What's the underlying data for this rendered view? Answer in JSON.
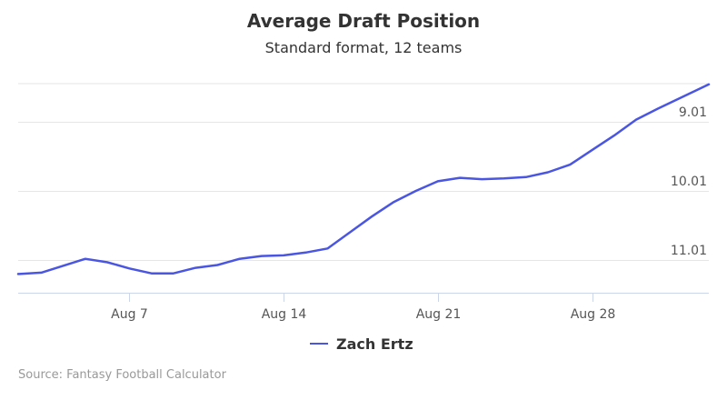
{
  "chart_data": {
    "type": "line",
    "title": "Average Draft Position",
    "subtitle": "Standard format, 12 teams",
    "xlabel": "",
    "ylabel": "",
    "x_ticks": [
      {
        "label": "Aug 7",
        "day": 7
      },
      {
        "label": "Aug 14",
        "day": 14
      },
      {
        "label": "Aug 21",
        "day": 21
      },
      {
        "label": "Aug 28",
        "day": 28
      }
    ],
    "y_ticks": [
      {
        "label": "9.01",
        "value": 9.01
      },
      {
        "label": "10.01",
        "value": 10.01
      },
      {
        "label": "11.01",
        "value": 11.01
      }
    ],
    "ylim": [
      8.46,
      11.48
    ],
    "y_reversed": true,
    "xlim": [
      1.95,
      33.3
    ],
    "grid": true,
    "legend_position": "bottom-center",
    "colors": {
      "series": "#4a56e2",
      "grid": "#e6e6e6",
      "axis": "#ccd6eb"
    },
    "series": [
      {
        "name": "Zach Ertz",
        "x": [
          "Aug 2",
          "Aug 3",
          "Aug 4",
          "Aug 5",
          "Aug 6",
          "Aug 7",
          "Aug 8",
          "Aug 9",
          "Aug 10",
          "Aug 11",
          "Aug 12",
          "Aug 13",
          "Aug 14",
          "Aug 15",
          "Aug 16",
          "Aug 17",
          "Aug 18",
          "Aug 19",
          "Aug 20",
          "Aug 21",
          "Aug 22",
          "Aug 23",
          "Aug 24",
          "Aug 25",
          "Aug 26",
          "Aug 27",
          "Aug 28",
          "Aug 29",
          "Aug 30",
          "Aug 31"
        ],
        "days": [
          2,
          3,
          4,
          5,
          6,
          7,
          8,
          9,
          10,
          11,
          12,
          13,
          14,
          15,
          16,
          17,
          18,
          19,
          20,
          21,
          22,
          23,
          24,
          25,
          26,
          27,
          28,
          29,
          30,
          31
        ],
        "values": [
          11.21,
          11.19,
          11.09,
          10.99,
          11.04,
          11.13,
          11.2,
          11.2,
          11.12,
          11.08,
          10.99,
          10.95,
          10.94,
          10.9,
          10.84,
          10.61,
          10.38,
          10.17,
          10.01,
          9.87,
          9.82,
          9.84,
          9.83,
          9.81,
          9.74,
          9.63,
          9.42,
          9.21,
          8.98,
          8.82
        ],
        "start_x": 1.95,
        "start_value": 11.21,
        "end_x": 33.3,
        "end_value": 8.47
      }
    ]
  },
  "credit": "Source: Fantasy Football Calculator"
}
